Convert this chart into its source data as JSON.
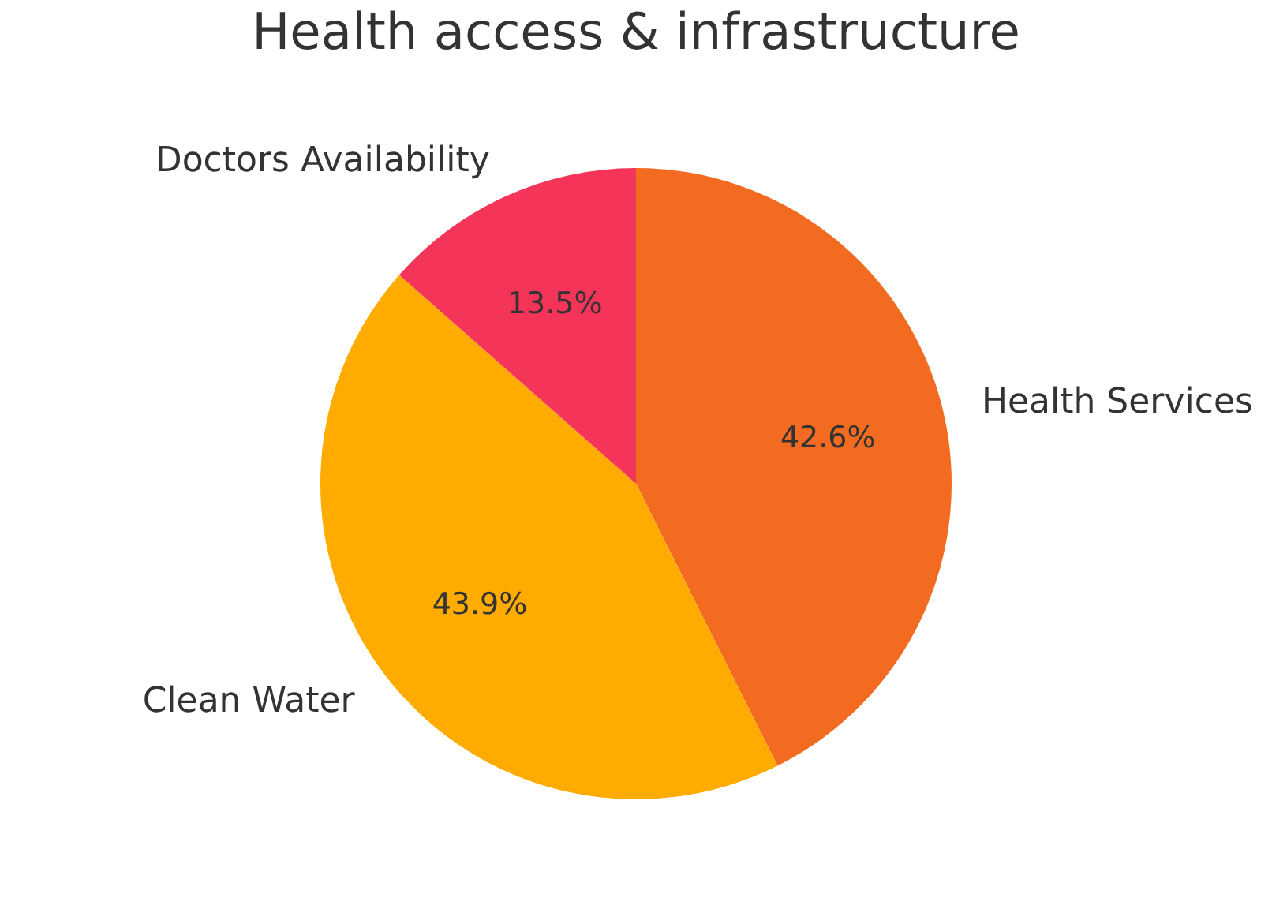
{
  "chart_data": {
    "type": "pie",
    "title": "Health access & infrastructure",
    "categories": [
      "Health Services",
      "Clean Water",
      "Doctors Availability"
    ],
    "values": [
      42.6,
      43.9,
      13.5
    ],
    "value_labels": [
      "42.6%",
      "43.9%",
      "13.5%"
    ],
    "colors": [
      "#f26b21",
      "#ffab00",
      "#f5345a"
    ]
  }
}
